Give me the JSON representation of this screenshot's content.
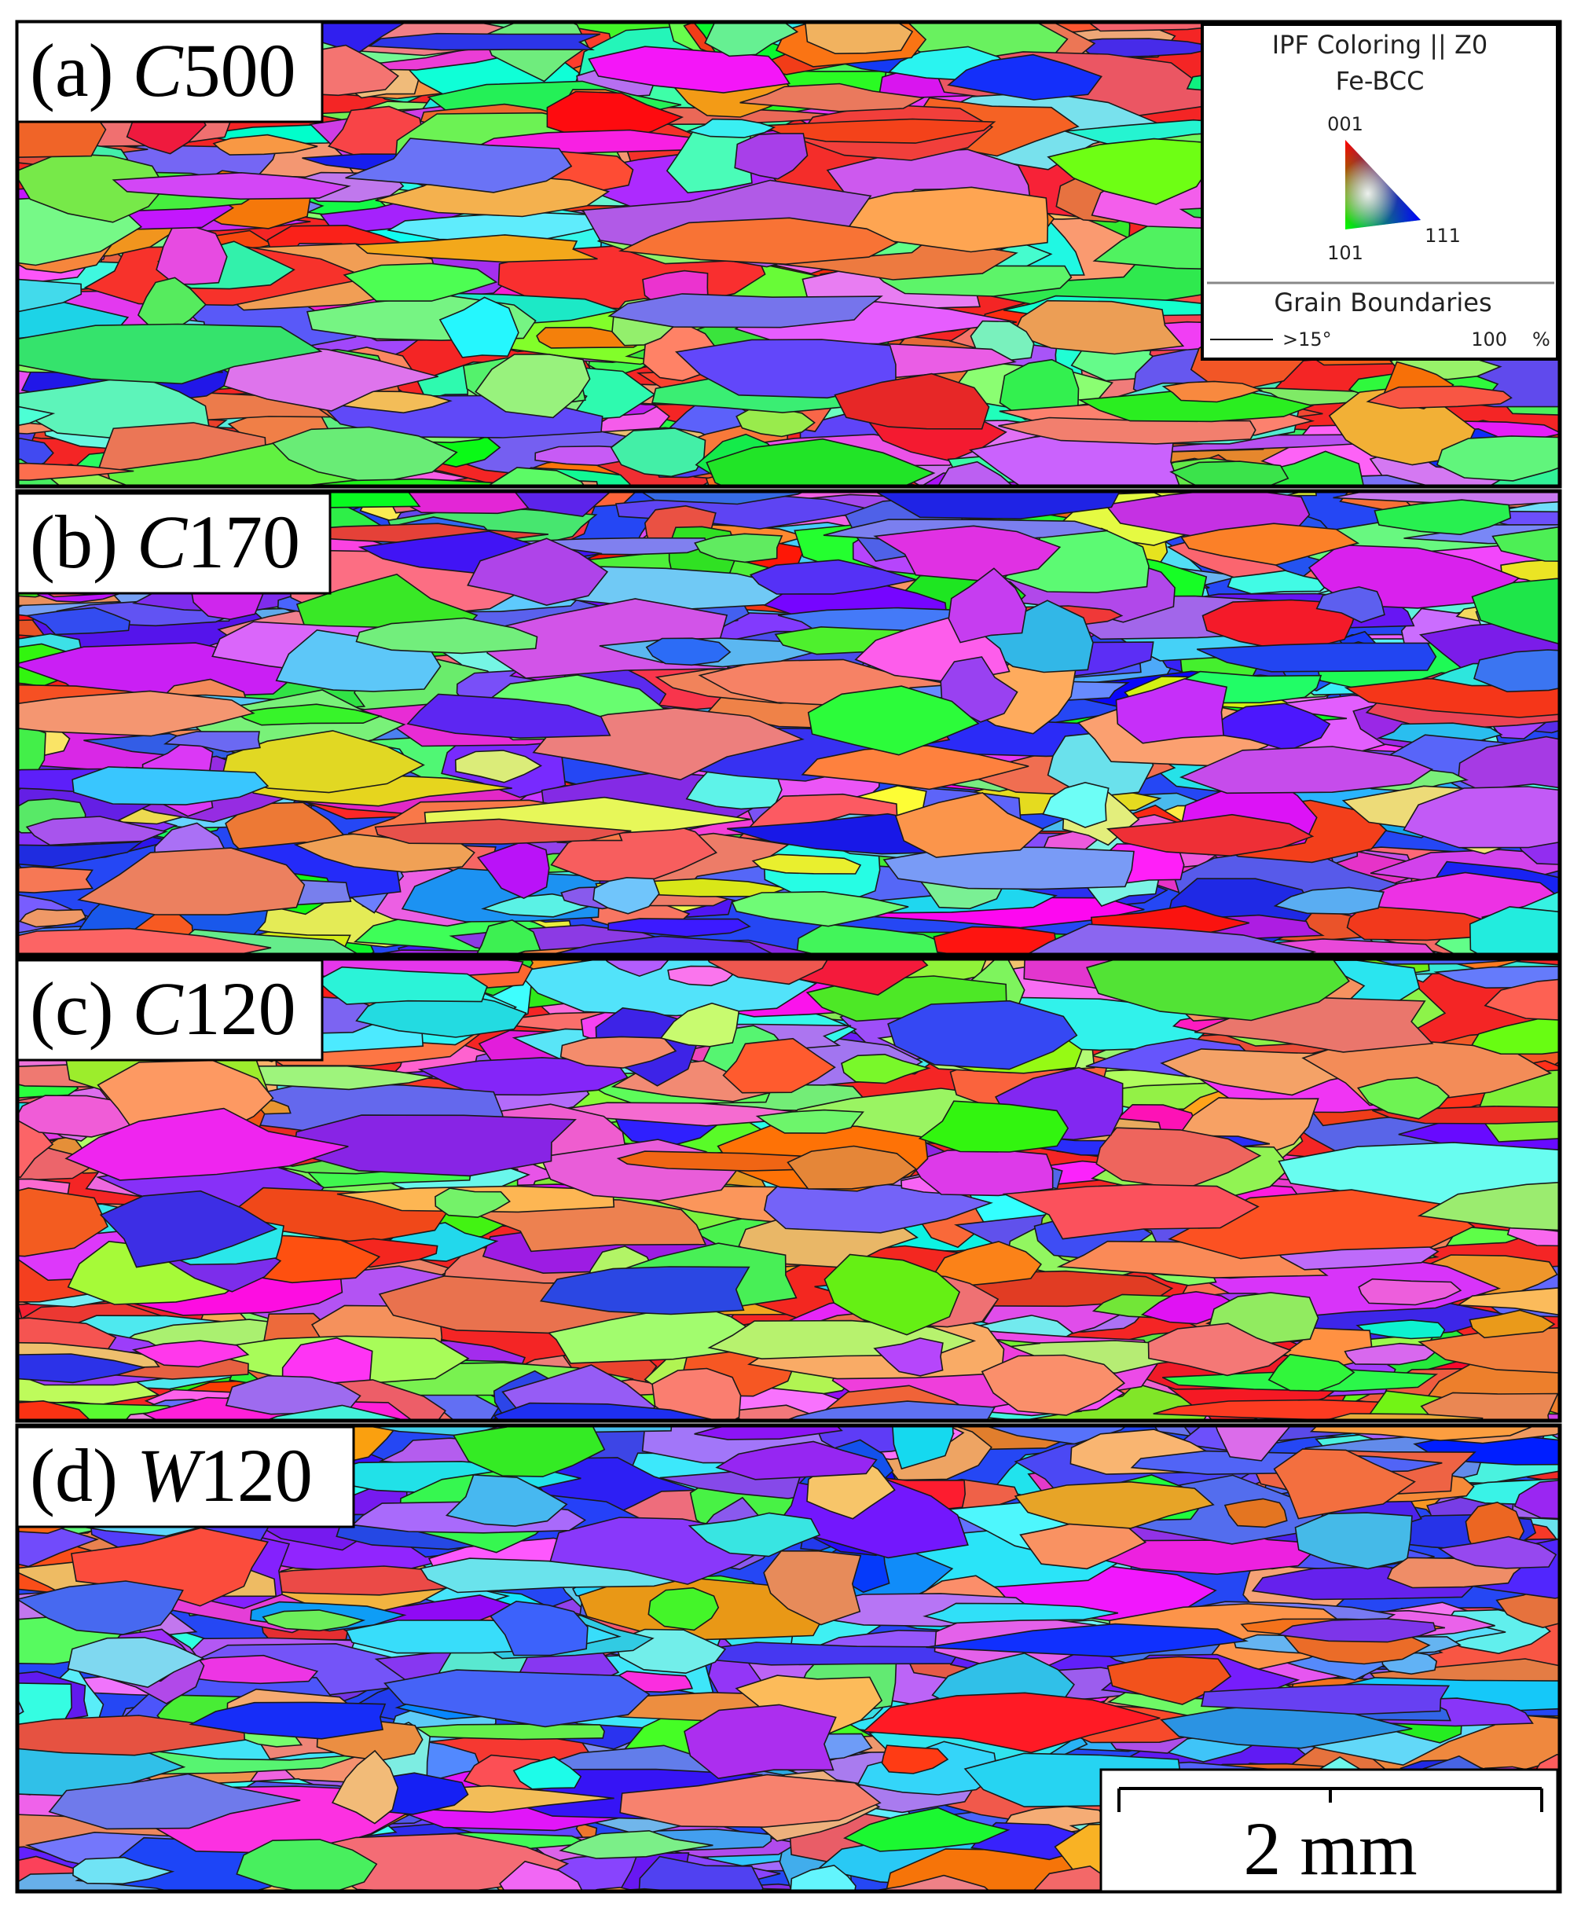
{
  "panels": [
    {
      "letter": "(a)",
      "prefix": "C",
      "number": "500"
    },
    {
      "letter": "(b)",
      "prefix": "C",
      "number": "170"
    },
    {
      "letter": "(c)",
      "prefix": "C",
      "number": "120"
    },
    {
      "letter": "(d)",
      "prefix": "W",
      "number": "120"
    }
  ],
  "legend": {
    "title": "IPF Coloring || Z0",
    "phase": "Fe-BCC",
    "corner_top": "001",
    "corner_left": "101",
    "corner_right": "111",
    "boundaries_title": "Grain Boundaries",
    "boundary_angle": ">15°",
    "boundary_fraction": "100",
    "fraction_unit": "%"
  },
  "scale_bar": {
    "label": "2 mm"
  }
}
